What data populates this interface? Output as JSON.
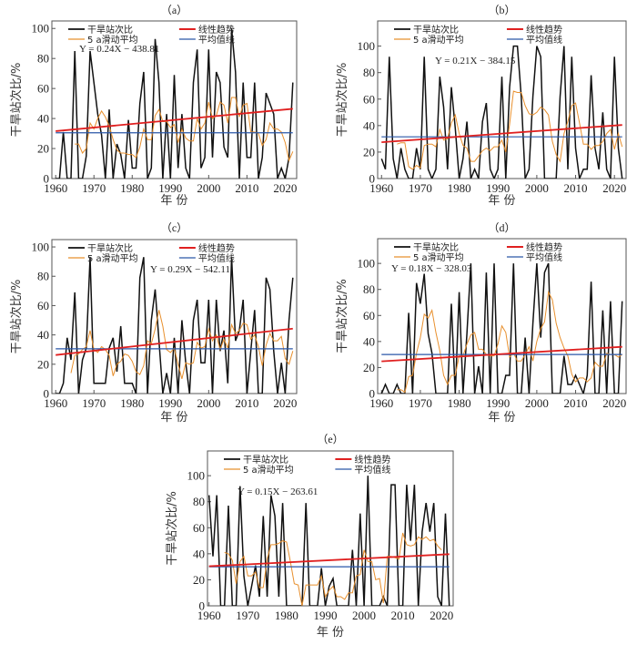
{
  "figure": {
    "ylabel": "干旱站次比/%",
    "xlabel": "年  份",
    "legend": {
      "ratio": "干旱站次比",
      "moving_avg": "5 a滑动平均",
      "trend": "线性趋势",
      "mean": "平均值线"
    },
    "colors": {
      "ratio": "#111111",
      "moving_avg": "#e8902e",
      "trend": "#e02020",
      "mean": "#2a57a8",
      "axis": "#555555"
    }
  },
  "chart_data": [
    {
      "id": "a",
      "type": "line",
      "title": "（a）",
      "xlabel": "年 份",
      "ylabel": "干旱站次比/%",
      "xlim": [
        1959,
        2023
      ],
      "ylim": [
        0,
        105
      ],
      "xticks": [
        1960,
        1970,
        1980,
        1990,
        2000,
        2010,
        2020
      ],
      "yticks": [
        0,
        20,
        40,
        60,
        80,
        100
      ],
      "equation": "Y = 0.24X − 438.81",
      "trend": {
        "slope": 0.24,
        "intercept": -438.81
      },
      "mean": 30.5,
      "legend": "top-left",
      "x": [
        1960,
        1961,
        1962,
        1963,
        1964,
        1965,
        1966,
        1967,
        1968,
        1969,
        1970,
        1971,
        1972,
        1973,
        1974,
        1975,
        1976,
        1977,
        1978,
        1979,
        1980,
        1981,
        1982,
        1983,
        1984,
        1985,
        1986,
        1987,
        1988,
        1989,
        1990,
        1991,
        1992,
        1993,
        1994,
        1995,
        1996,
        1997,
        1998,
        1999,
        2000,
        2001,
        2002,
        2003,
        2004,
        2005,
        2006,
        2007,
        2008,
        2009,
        2010,
        2011,
        2012,
        2013,
        2014,
        2015,
        2016,
        2017,
        2018,
        2019,
        2020,
        2021,
        2022
      ],
      "series": [
        {
          "name": "干旱站次比",
          "values": [
            0,
            0,
            31,
            0,
            0,
            85,
            0,
            0,
            15,
            85,
            64,
            43,
            29,
            0,
            46,
            0,
            23,
            16,
            0,
            39,
            7,
            7,
            50,
            71,
            0,
            7,
            93,
            64,
            0,
            43,
            0,
            69,
            7,
            43,
            7,
            0,
            64,
            86,
            7,
            14,
            86,
            14,
            71,
            64,
            21,
            14,
            100,
            71,
            0,
            64,
            14,
            14,
            64,
            0,
            14,
            57,
            50,
            43,
            0,
            7,
            0,
            14,
            64
          ]
        },
        {
          "name": "5 a滑动平均",
          "values": [
            null,
            null,
            null,
            null,
            null,
            23,
            23,
            17,
            20,
            37,
            33,
            40,
            45,
            41,
            35,
            26,
            19,
            17,
            17,
            16,
            16,
            14,
            21,
            33,
            26,
            26,
            42,
            46,
            38,
            38,
            34,
            36,
            24,
            33,
            27,
            25,
            25,
            40,
            33,
            37,
            51,
            40,
            42,
            51,
            49,
            37,
            54,
            54,
            41,
            49,
            50,
            31,
            31,
            30,
            22,
            26,
            37,
            33,
            33,
            31,
            24,
            12,
            18
          ]
        }
      ]
    },
    {
      "id": "b",
      "type": "line",
      "title": "（b）",
      "xlabel": "年 份",
      "ylabel": "干旱站次比/%",
      "xlim": [
        1959,
        2023
      ],
      "ylim": [
        0,
        119
      ],
      "xticks": [
        1960,
        1970,
        1980,
        1990,
        2000,
        2010,
        2020
      ],
      "yticks": [
        0,
        20,
        40,
        60,
        80,
        100
      ],
      "equation": "Y = 0.21X − 384.15",
      "trend": {
        "slope": 0.21,
        "intercept": -384.15
      },
      "mean": 31.5,
      "legend": "top-left",
      "x": [
        1960,
        1961,
        1962,
        1963,
        1964,
        1965,
        1966,
        1967,
        1968,
        1969,
        1970,
        1971,
        1972,
        1973,
        1974,
        1975,
        1976,
        1977,
        1978,
        1979,
        1980,
        1981,
        1982,
        1983,
        1984,
        1985,
        1986,
        1987,
        1988,
        1989,
        1990,
        1991,
        1992,
        1993,
        1994,
        1995,
        1996,
        1997,
        1998,
        1999,
        2000,
        2001,
        2002,
        2003,
        2004,
        2005,
        2006,
        2007,
        2008,
        2009,
        2010,
        2011,
        2012,
        2013,
        2014,
        2015,
        2016,
        2017,
        2018,
        2019,
        2020,
        2021,
        2022
      ],
      "series": [
        {
          "name": "干旱站次比",
          "values": [
            15,
            7,
            92,
            15,
            0,
            23,
            7,
            0,
            0,
            23,
            7,
            92,
            7,
            0,
            7,
            77,
            54,
            7,
            69,
            38,
            0,
            15,
            43,
            0,
            7,
            0,
            43,
            57,
            7,
            0,
            7,
            77,
            0,
            69,
            100,
            100,
            62,
            0,
            7,
            62,
            100,
            92,
            0,
            0,
            0,
            0,
            62,
            100,
            7,
            92,
            23,
            0,
            7,
            7,
            78,
            23,
            7,
            50,
            7,
            0,
            92,
            23,
            0
          ]
        },
        {
          "name": "5 a滑动平均",
          "values": [
            null,
            null,
            null,
            null,
            26,
            27,
            27,
            9,
            7,
            10,
            8,
            25,
            26,
            26,
            24,
            37,
            29,
            30,
            42,
            48,
            34,
            25,
            23,
            13,
            13,
            17,
            21,
            23,
            21,
            24,
            24,
            29,
            20,
            41,
            66,
            65,
            65,
            55,
            49,
            48,
            50,
            54,
            52,
            48,
            28,
            18,
            13,
            34,
            43,
            55,
            57,
            42,
            26,
            26,
            22,
            25,
            25,
            28,
            34,
            37,
            22,
            34,
            24
          ]
        }
      ]
    },
    {
      "id": "c",
      "type": "line",
      "title": "（c）",
      "xlabel": "年 份",
      "ylabel": "干旱站次比/%",
      "xlim": [
        1959,
        2023
      ],
      "ylim": [
        0,
        105
      ],
      "xticks": [
        1960,
        1970,
        1980,
        1990,
        2000,
        2010,
        2020
      ],
      "yticks": [
        0,
        20,
        40,
        60,
        80,
        100
      ],
      "equation": "Y = 0.29X − 542.11",
      "trend": {
        "slope": 0.29,
        "intercept": -542.11
      },
      "mean": 30.5,
      "legend": "top-left",
      "x": [
        1960,
        1961,
        1962,
        1963,
        1964,
        1965,
        1966,
        1967,
        1968,
        1969,
        1970,
        1971,
        1972,
        1973,
        1974,
        1975,
        1976,
        1977,
        1978,
        1979,
        1980,
        1981,
        1982,
        1983,
        1984,
        1985,
        1986,
        1987,
        1988,
        1989,
        1990,
        1991,
        1992,
        1993,
        1994,
        1995,
        1996,
        1997,
        1998,
        1999,
        2000,
        2001,
        2002,
        2003,
        2004,
        2005,
        2006,
        2007,
        2008,
        2009,
        2010,
        2011,
        2012,
        2013,
        2014,
        2015,
        2016,
        2017,
        2018,
        2019,
        2020,
        2021,
        2022
      ],
      "series": [
        {
          "name": "干旱站次比",
          "values": [
            0,
            0,
            7,
            38,
            23,
            69,
            0,
            23,
            31,
            93,
            7,
            7,
            7,
            7,
            31,
            38,
            15,
            46,
            7,
            7,
            7,
            0,
            79,
            93,
            0,
            50,
            71,
            36,
            0,
            14,
            0,
            38,
            0,
            50,
            21,
            0,
            50,
            64,
            21,
            21,
            64,
            0,
            64,
            29,
            43,
            7,
            93,
            36,
            43,
            64,
            0,
            29,
            57,
            0,
            0,
            79,
            71,
            29,
            0,
            21,
            0,
            50,
            79
          ]
        },
        {
          "name": "5 a滑动平均",
          "values": [
            null,
            null,
            null,
            null,
            14,
            26,
            27,
            30,
            32,
            43,
            30,
            28,
            32,
            30,
            26,
            12,
            20,
            22,
            27,
            26,
            22,
            15,
            13,
            19,
            36,
            34,
            44,
            57,
            46,
            30,
            28,
            31,
            20,
            10,
            21,
            20,
            21,
            35,
            31,
            32,
            44,
            36,
            40,
            30,
            37,
            31,
            47,
            41,
            43,
            48,
            47,
            37,
            40,
            32,
            19,
            33,
            41,
            36,
            36,
            39,
            24,
            20,
            29
          ]
        }
      ]
    },
    {
      "id": "d",
      "type": "line",
      "title": "（d）",
      "xlabel": "年 份",
      "ylabel": "干旱站次比/%",
      "xlim": [
        1959,
        2023
      ],
      "ylim": [
        0,
        119
      ],
      "xticks": [
        1960,
        1970,
        1980,
        1990,
        2000,
        2010,
        2020
      ],
      "yticks": [
        0,
        20,
        40,
        60,
        80,
        100
      ],
      "equation": "Y = 0.18X − 328.03",
      "trend": {
        "slope": 0.18,
        "intercept": -328.03
      },
      "mean": 30,
      "legend": "top-left",
      "x": [
        1960,
        1961,
        1962,
        1963,
        1964,
        1965,
        1966,
        1967,
        1968,
        1969,
        1970,
        1971,
        1972,
        1973,
        1974,
        1975,
        1976,
        1977,
        1978,
        1979,
        1980,
        1981,
        1982,
        1983,
        1984,
        1985,
        1986,
        1987,
        1988,
        1989,
        1990,
        1991,
        1992,
        1993,
        1994,
        1995,
        1996,
        1997,
        1998,
        1999,
        2000,
        2001,
        2002,
        2003,
        2004,
        2005,
        2006,
        2007,
        2008,
        2009,
        2010,
        2011,
        2012,
        2013,
        2014,
        2015,
        2016,
        2017,
        2018,
        2019,
        2020,
        2021,
        2022
      ],
      "series": [
        {
          "name": "干旱站次比",
          "values": [
            0,
            7,
            0,
            0,
            7,
            0,
            0,
            62,
            0,
            85,
            69,
            92,
            46,
            31,
            0,
            0,
            0,
            0,
            69,
            0,
            78,
            0,
            46,
            100,
            0,
            21,
            0,
            93,
            0,
            100,
            0,
            0,
            14,
            14,
            100,
            0,
            0,
            43,
            0,
            54,
            100,
            43,
            93,
            100,
            0,
            0,
            0,
            29,
            7,
            7,
            14,
            7,
            0,
            14,
            86,
            0,
            0,
            64,
            0,
            71,
            0,
            0,
            71
          ]
        },
        {
          "name": "5 a滑动平均",
          "values": [
            null,
            null,
            null,
            null,
            3,
            3,
            1,
            13,
            14,
            31,
            43,
            61,
            58,
            64,
            47,
            33,
            14,
            7,
            14,
            14,
            29,
            29,
            38,
            45,
            47,
            34,
            34,
            30,
            29,
            29,
            38,
            52,
            47,
            28,
            31,
            25,
            25,
            30,
            36,
            25,
            40,
            50,
            55,
            78,
            72,
            54,
            43,
            35,
            29,
            15,
            9,
            12,
            12,
            9,
            12,
            24,
            21,
            21,
            31,
            30,
            30,
            28,
            30
          ]
        }
      ]
    },
    {
      "id": "e",
      "type": "line",
      "title": "（e）",
      "xlabel": "年 份",
      "ylabel": "干旱站次比/%",
      "xlim": [
        1959.6,
        2023
      ],
      "ylim": [
        0,
        119
      ],
      "xticks": [
        1960,
        1970,
        1980,
        1990,
        2000,
        2010,
        2020
      ],
      "yticks": [
        0,
        20,
        40,
        60,
        80,
        100
      ],
      "equation": "Y = 0.15X − 263.61",
      "trend": {
        "slope": 0.15,
        "intercept": -263.61
      },
      "mean": 30,
      "legend": "top-left",
      "x": [
        1960,
        1961,
        1962,
        1963,
        1964,
        1965,
        1966,
        1967,
        1968,
        1969,
        1970,
        1971,
        1972,
        1973,
        1974,
        1975,
        1976,
        1977,
        1978,
        1979,
        1980,
        1981,
        1982,
        1983,
        1984,
        1985,
        1986,
        1987,
        1988,
        1989,
        1990,
        1991,
        1992,
        1993,
        1994,
        1995,
        1996,
        1997,
        1998,
        1999,
        2000,
        2001,
        2002,
        2003,
        2004,
        2005,
        2006,
        2007,
        2008,
        2009,
        2010,
        2011,
        2012,
        2013,
        2014,
        2015,
        2016,
        2017,
        2018,
        2019,
        2020,
        2021,
        2022
      ],
      "series": [
        {
          "name": "干旱站次比",
          "values": [
            85,
            38,
            85,
            0,
            0,
            77,
            0,
            0,
            92,
            23,
            0,
            15,
            31,
            7,
            69,
            7,
            85,
            69,
            7,
            79,
            0,
            0,
            0,
            0,
            0,
            79,
            0,
            0,
            0,
            29,
            0,
            15,
            21,
            0,
            0,
            0,
            0,
            43,
            0,
            71,
            0,
            100,
            0,
            0,
            0,
            7,
            0,
            93,
            93,
            0,
            0,
            93,
            50,
            93,
            0,
            57,
            79,
            57,
            79,
            7,
            0,
            71,
            0
          ]
        },
        {
          "name": "5 a滑动平均",
          "values": [
            null,
            null,
            null,
            null,
            41,
            40,
            35,
            17,
            34,
            38,
            23,
            23,
            26,
            14,
            14,
            36,
            47,
            47,
            48,
            50,
            49,
            34,
            17,
            16,
            0,
            16,
            16,
            16,
            16,
            23,
            7,
            12,
            15,
            7,
            7,
            5,
            10,
            10,
            23,
            24,
            43,
            34,
            34,
            20,
            21,
            2,
            38,
            38,
            37,
            36,
            56,
            47,
            46,
            47,
            53,
            51,
            53,
            50,
            51,
            46,
            43,
            null,
            null
          ]
        }
      ]
    }
  ]
}
